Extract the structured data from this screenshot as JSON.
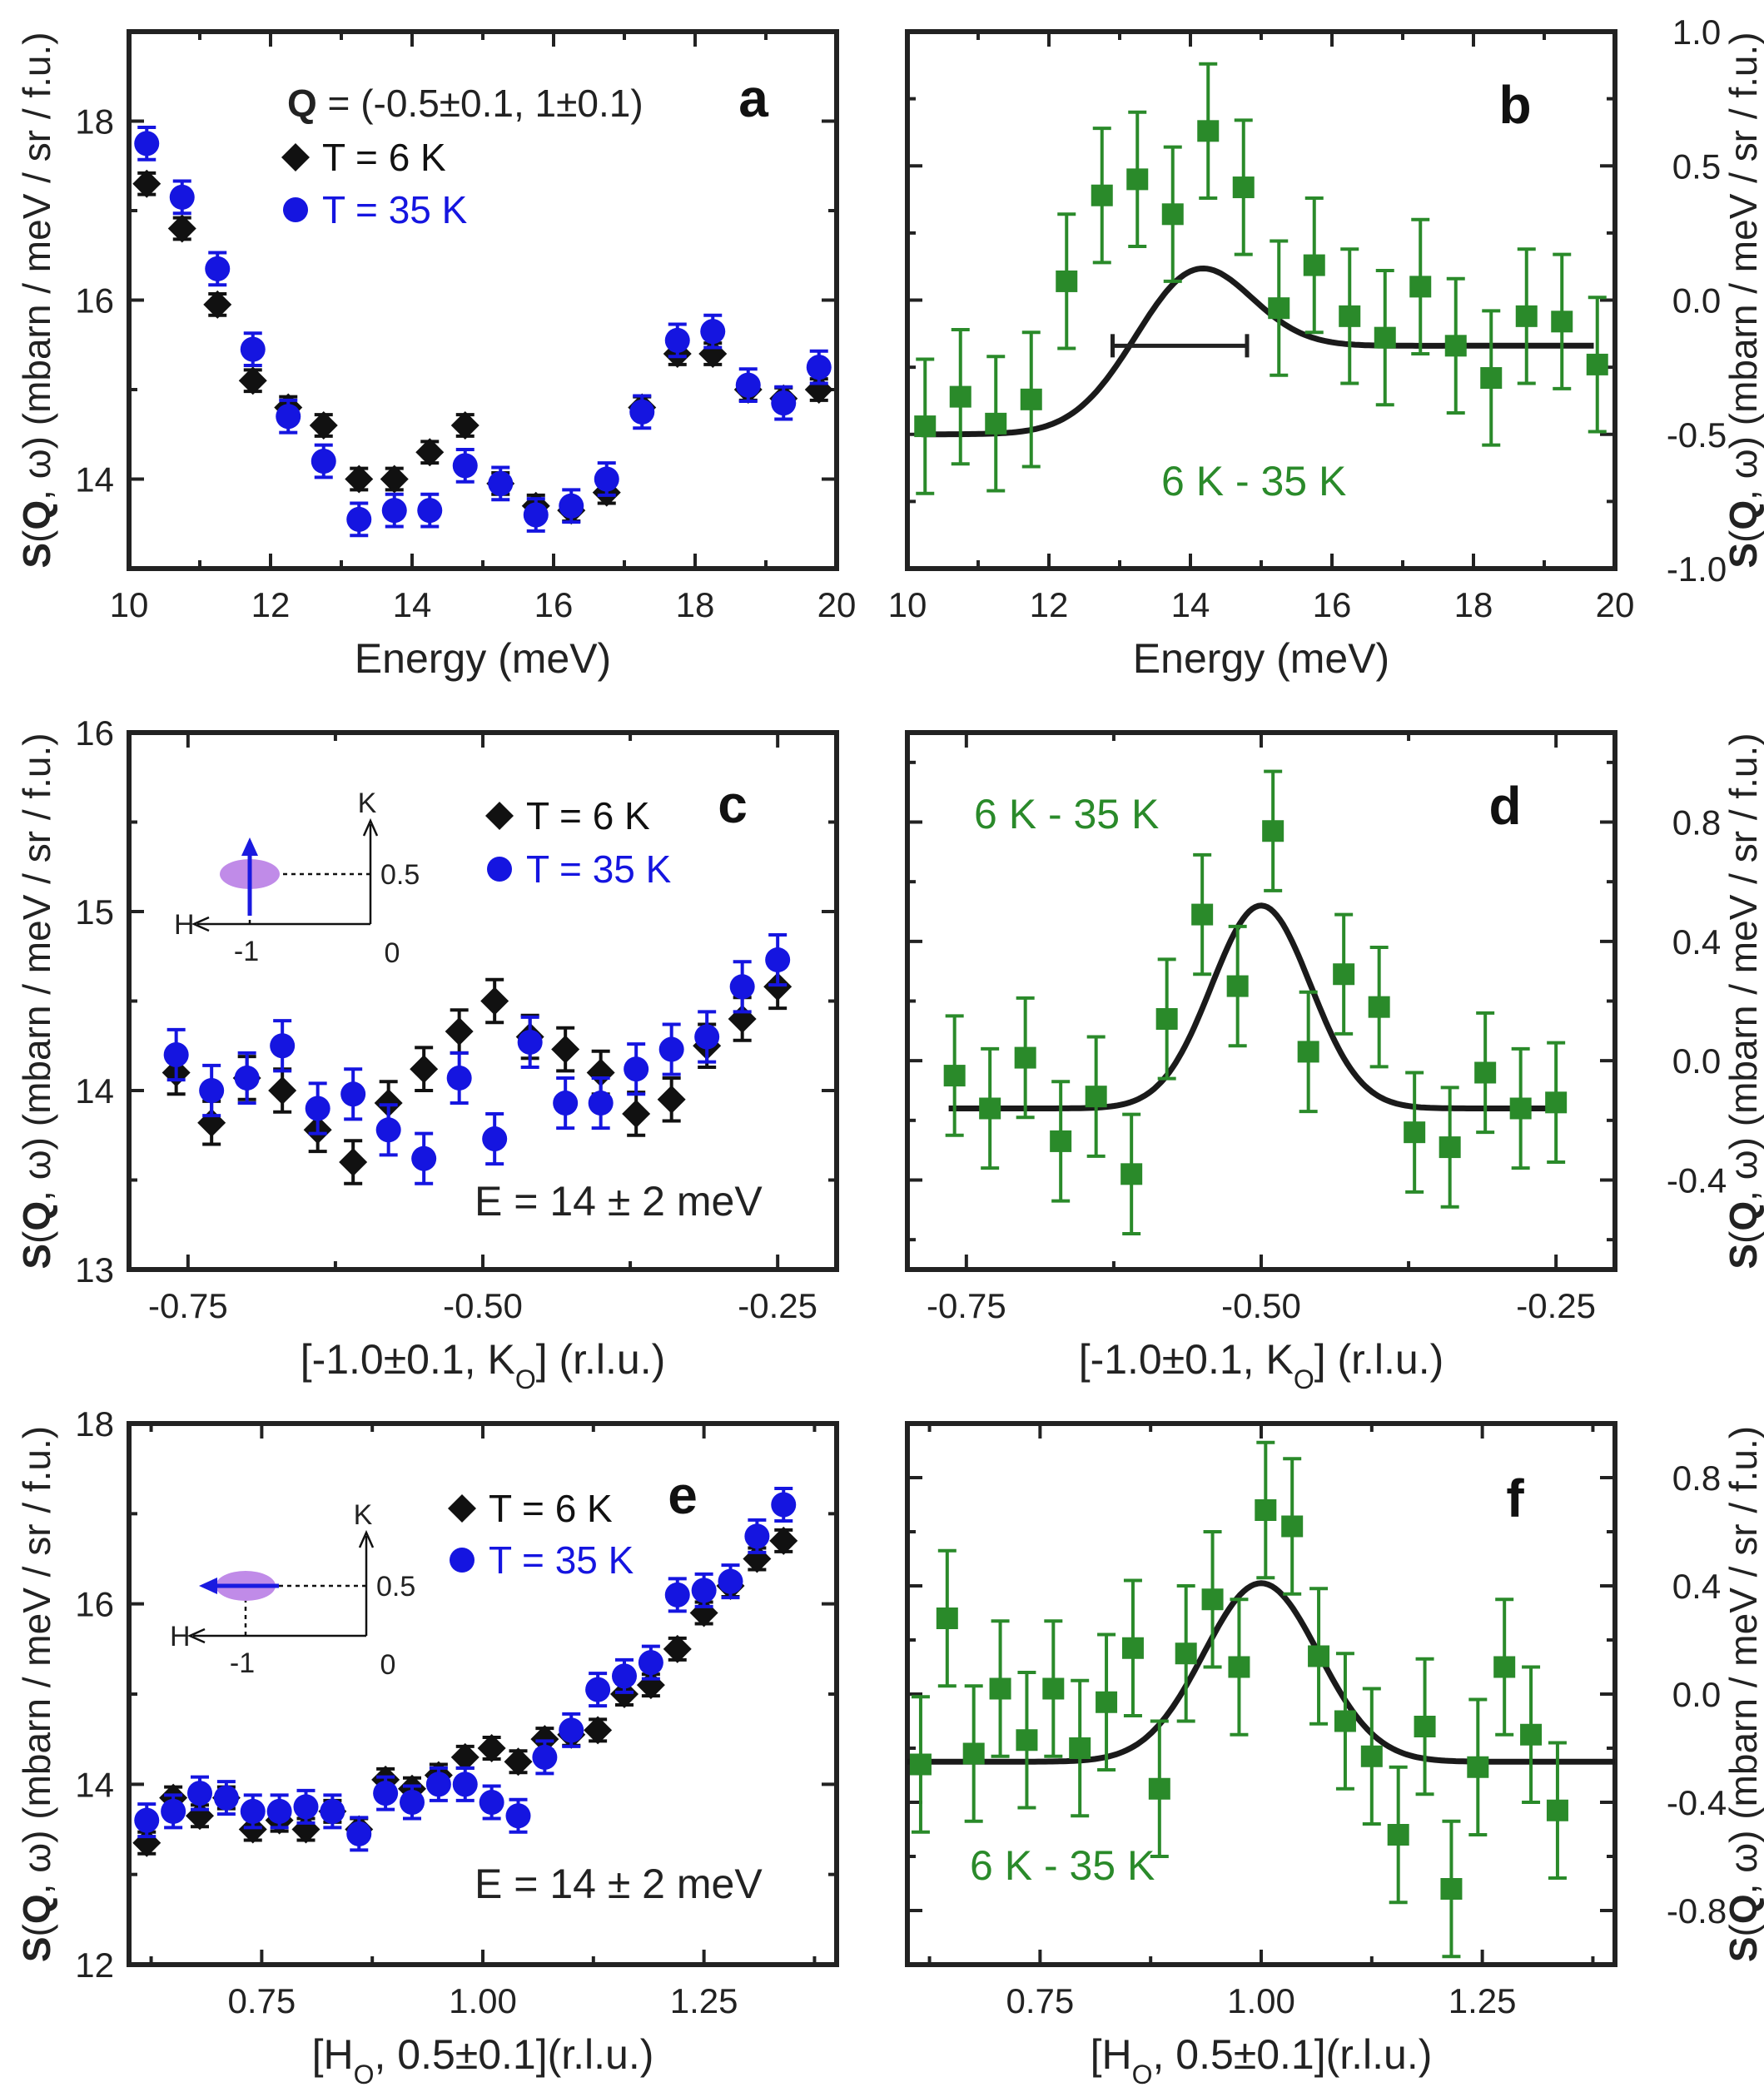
{
  "colors": {
    "t6": "#111111",
    "t35": "#1515e0",
    "diff": "#2a8a2a",
    "fit": "#1a1a1a",
    "ellipse": "#c08be8",
    "arrow": "#1a1ae0"
  },
  "chart_data": [
    {
      "id": "a",
      "type": "scatter",
      "panel_label": "a",
      "xlabel": "Energy (meV)",
      "ylabel": "S(Q, ω) (mbarn / meV / sr / f.u.)",
      "xlim": [
        10,
        20
      ],
      "ylim": [
        13,
        19
      ],
      "xticks": [
        10,
        12,
        14,
        16,
        18,
        20
      ],
      "yticks": [
        14,
        16,
        18
      ],
      "xtick_labels": [
        "10",
        "12",
        "14",
        "16",
        "18",
        "20"
      ],
      "ytick_labels": [
        "14",
        "16",
        "18"
      ],
      "y_axis_side": "left",
      "q_label": "= (-0.5±0.1, 1±0.1)",
      "q_symbol": "Q",
      "legend": [
        {
          "label": "T = 6 K",
          "marker": "diamond",
          "color_key": "t6"
        },
        {
          "label": "T = 35 K",
          "marker": "circle",
          "color_key": "t35"
        }
      ],
      "series": [
        {
          "name": "T = 6 K",
          "marker": "diamond",
          "color_key": "t6",
          "x": [
            10.25,
            10.75,
            11.25,
            11.75,
            12.25,
            12.75,
            13.25,
            13.75,
            14.25,
            14.75,
            15.25,
            15.75,
            16.25,
            16.75,
            17.25,
            17.75,
            18.25,
            18.75,
            19.25,
            19.75
          ],
          "y": [
            17.3,
            16.8,
            15.95,
            15.1,
            14.8,
            14.6,
            14.0,
            14.0,
            14.3,
            14.6,
            13.95,
            13.7,
            13.65,
            13.85,
            14.8,
            15.4,
            15.4,
            15.0,
            14.9,
            15.0
          ],
          "err": [
            0.12,
            0.12,
            0.12,
            0.12,
            0.12,
            0.12,
            0.12,
            0.12,
            0.12,
            0.12,
            0.12,
            0.12,
            0.12,
            0.12,
            0.12,
            0.12,
            0.12,
            0.12,
            0.12,
            0.12
          ]
        },
        {
          "name": "T = 35 K",
          "marker": "circle",
          "color_key": "t35",
          "x": [
            10.25,
            10.75,
            11.25,
            11.75,
            12.25,
            12.75,
            13.25,
            13.75,
            14.25,
            14.75,
            15.25,
            15.75,
            16.25,
            16.75,
            17.25,
            17.75,
            18.25,
            18.75,
            19.25,
            19.75
          ],
          "y": [
            17.75,
            17.15,
            16.35,
            15.45,
            14.7,
            14.2,
            13.55,
            13.65,
            13.65,
            14.15,
            13.95,
            13.6,
            13.7,
            14.0,
            14.75,
            15.55,
            15.65,
            15.05,
            14.85,
            15.25
          ],
          "err": [
            0.18,
            0.18,
            0.18,
            0.18,
            0.18,
            0.18,
            0.18,
            0.18,
            0.18,
            0.18,
            0.18,
            0.18,
            0.18,
            0.18,
            0.18,
            0.18,
            0.18,
            0.18,
            0.18,
            0.18
          ]
        }
      ]
    },
    {
      "id": "b",
      "type": "scatter",
      "panel_label": "b",
      "xlabel": "Energy (meV)",
      "ylabel": "S(Q, ω) (mbarn / meV / sr / f.u.)",
      "xlim": [
        10,
        20
      ],
      "ylim": [
        -1.0,
        1.0
      ],
      "xticks": [
        10,
        12,
        14,
        16,
        18,
        20
      ],
      "yticks": [
        -1.0,
        -0.5,
        0.0,
        0.5,
        1.0
      ],
      "xtick_labels": [
        "10",
        "12",
        "14",
        "16",
        "18",
        "20"
      ],
      "ytick_labels": [
        "-1.0",
        "-0.5",
        "0.0",
        "0.5",
        "1.0"
      ],
      "y_axis_side": "right",
      "annotation": "6 K - 35 K",
      "resolution_bar": {
        "x0": 12.9,
        "x1": 14.8,
        "y": -0.17
      },
      "fit": {
        "type": "gaussian",
        "baseline": -0.17,
        "baseline_slope_to": -0.5,
        "amplitude": 0.64,
        "center": 13.9,
        "sigma": 0.82,
        "x_from": 10.2,
        "x_to": 19.7
      },
      "series": [
        {
          "name": "6 K - 35 K",
          "marker": "square",
          "color_key": "diff",
          "x": [
            10.25,
            10.75,
            11.25,
            11.75,
            12.25,
            12.75,
            13.25,
            13.75,
            14.25,
            14.75,
            15.25,
            15.75,
            16.25,
            16.75,
            17.25,
            17.75,
            18.25,
            18.75,
            19.25,
            19.75
          ],
          "y": [
            -0.47,
            -0.36,
            -0.46,
            -0.37,
            0.07,
            0.39,
            0.45,
            0.32,
            0.63,
            0.42,
            -0.03,
            0.13,
            -0.06,
            -0.14,
            0.05,
            -0.17,
            -0.29,
            -0.06,
            -0.08,
            -0.24
          ],
          "err": [
            0.25,
            0.25,
            0.25,
            0.25,
            0.25,
            0.25,
            0.25,
            0.25,
            0.25,
            0.25,
            0.25,
            0.25,
            0.25,
            0.25,
            0.25,
            0.25,
            0.25,
            0.25,
            0.25,
            0.25
          ]
        }
      ]
    },
    {
      "id": "c",
      "type": "scatter",
      "panel_label": "c",
      "xlabel": "[-1.0±0.1, K",
      "xlabel_sub": "O",
      "xlabel_suffix": "] (r.l.u.)",
      "ylabel": "S(Q, ω) (mbarn / meV / sr / f.u.)",
      "xlim": [
        -0.8,
        -0.2
      ],
      "ylim": [
        13,
        16
      ],
      "xticks": [
        -0.75,
        -0.5,
        -0.25
      ],
      "yticks": [
        13,
        14,
        15,
        16
      ],
      "xtick_labels": [
        "-0.75",
        "-0.50",
        "-0.25"
      ],
      "ytick_labels": [
        "13",
        "14",
        "15",
        "16"
      ],
      "y_axis_side": "left",
      "annotation": "E = 14 ± 2 meV",
      "inset": {
        "k_label": "K",
        "h_label": "H",
        "half_label": "0.5",
        "minus_one_label": "-1",
        "zero_label": "0",
        "orientation": "vertical"
      },
      "legend": [
        {
          "label": "T = 6 K",
          "marker": "diamond",
          "color_key": "t6"
        },
        {
          "label": "T = 35 K",
          "marker": "circle",
          "color_key": "t35"
        }
      ],
      "series": [
        {
          "name": "T = 6 K",
          "marker": "diamond",
          "color_key": "t6",
          "x": [
            -0.76,
            -0.73,
            -0.7,
            -0.67,
            -0.64,
            -0.61,
            -0.58,
            -0.55,
            -0.52,
            -0.49,
            -0.46,
            -0.43,
            -0.4,
            -0.37,
            -0.34,
            -0.31,
            -0.28,
            -0.25
          ],
          "y": [
            14.1,
            13.82,
            14.07,
            14.0,
            13.78,
            13.6,
            13.93,
            14.12,
            14.33,
            14.5,
            14.3,
            14.23,
            14.1,
            13.87,
            13.95,
            14.25,
            14.4,
            14.58
          ],
          "err": [
            0.12,
            0.12,
            0.12,
            0.12,
            0.12,
            0.12,
            0.12,
            0.12,
            0.12,
            0.12,
            0.12,
            0.12,
            0.12,
            0.12,
            0.12,
            0.12,
            0.12,
            0.12
          ]
        },
        {
          "name": "T = 35 K",
          "marker": "circle",
          "color_key": "t35",
          "x": [
            -0.76,
            -0.73,
            -0.7,
            -0.67,
            -0.64,
            -0.61,
            -0.58,
            -0.55,
            -0.52,
            -0.49,
            -0.46,
            -0.43,
            -0.4,
            -0.37,
            -0.34,
            -0.31,
            -0.28,
            -0.25
          ],
          "y": [
            14.2,
            14.0,
            14.07,
            14.25,
            13.9,
            13.98,
            13.78,
            13.62,
            14.07,
            13.73,
            14.27,
            13.93,
            13.93,
            14.12,
            14.23,
            14.3,
            14.58,
            14.73
          ],
          "err": [
            0.14,
            0.14,
            0.14,
            0.14,
            0.14,
            0.14,
            0.14,
            0.14,
            0.14,
            0.14,
            0.14,
            0.14,
            0.14,
            0.14,
            0.14,
            0.14,
            0.14,
            0.14
          ]
        }
      ]
    },
    {
      "id": "d",
      "type": "scatter",
      "panel_label": "d",
      "xlabel": "[-1.0±0.1, K",
      "xlabel_sub": "O",
      "xlabel_suffix": "] (r.l.u.)",
      "ylabel": "S(Q, ω) (mbarn / meV / sr / f.u.)",
      "xlim": [
        -0.8,
        -0.2
      ],
      "ylim": [
        -0.7,
        1.1
      ],
      "xticks": [
        -0.75,
        -0.5,
        -0.25
      ],
      "yticks": [
        -0.4,
        0.0,
        0.4,
        0.8
      ],
      "xtick_labels": [
        "-0.75",
        "-0.50",
        "-0.25"
      ],
      "ytick_labels": [
        "-0.4",
        "0.0",
        "0.4",
        "0.8"
      ],
      "y_axis_side": "right",
      "annotation": "6 K - 35 K",
      "fit": {
        "type": "gaussian",
        "baseline": -0.16,
        "amplitude": 0.68,
        "center": -0.5,
        "sigma": 0.042,
        "x_from": -0.765,
        "x_to": -0.245
      },
      "series": [
        {
          "name": "6 K - 35 K",
          "marker": "square",
          "color_key": "diff",
          "x": [
            -0.76,
            -0.73,
            -0.7,
            -0.67,
            -0.64,
            -0.61,
            -0.58,
            -0.55,
            -0.52,
            -0.49,
            -0.46,
            -0.43,
            -0.4,
            -0.37,
            -0.34,
            -0.31,
            -0.28,
            -0.25
          ],
          "y": [
            -0.05,
            -0.16,
            0.01,
            -0.27,
            -0.12,
            -0.38,
            0.14,
            0.49,
            0.25,
            0.77,
            0.03,
            0.29,
            0.18,
            -0.24,
            -0.29,
            -0.04,
            -0.16,
            -0.14
          ],
          "err": [
            0.2,
            0.2,
            0.2,
            0.2,
            0.2,
            0.2,
            0.2,
            0.2,
            0.2,
            0.2,
            0.2,
            0.2,
            0.2,
            0.2,
            0.2,
            0.2,
            0.2,
            0.2
          ]
        }
      ]
    },
    {
      "id": "e",
      "type": "scatter",
      "panel_label": "e",
      "xlabel": "[H",
      "xlabel_sub": "O",
      "xlabel_suffix": ", 0.5±0.1](r.l.u.)",
      "ylabel": "S(Q, ω) (mbarn / meV / sr / f.u.)",
      "xlim": [
        0.6,
        1.4
      ],
      "ylim": [
        12,
        18
      ],
      "xticks": [
        0.75,
        1.0,
        1.25
      ],
      "yticks": [
        12,
        14,
        16,
        18
      ],
      "xtick_labels": [
        "0.75",
        "1.00",
        "1.25"
      ],
      "ytick_labels": [
        "12",
        "14",
        "16",
        "18"
      ],
      "y_axis_side": "left",
      "annotation": "E = 14 ± 2 meV",
      "inset": {
        "k_label": "K",
        "h_label": "H",
        "half_label": "0.5",
        "minus_one_label": "-1",
        "zero_label": "0",
        "orientation": "horizontal"
      },
      "legend": [
        {
          "label": "T = 6 K",
          "marker": "diamond",
          "color_key": "t6"
        },
        {
          "label": "T = 35 K",
          "marker": "circle",
          "color_key": "t35"
        }
      ],
      "series": [
        {
          "name": "T = 6 K",
          "marker": "diamond",
          "color_key": "t6",
          "x": [
            0.62,
            0.65,
            0.68,
            0.71,
            0.74,
            0.77,
            0.8,
            0.83,
            0.86,
            0.89,
            0.92,
            0.95,
            0.98,
            1.01,
            1.04,
            1.07,
            1.1,
            1.13,
            1.16,
            1.19,
            1.22,
            1.25,
            1.28,
            1.31,
            1.34
          ],
          "y": [
            13.35,
            13.85,
            13.65,
            13.85,
            13.5,
            13.6,
            13.5,
            13.7,
            13.5,
            14.05,
            13.95,
            14.1,
            14.3,
            14.4,
            14.25,
            14.5,
            14.55,
            14.6,
            15.0,
            15.1,
            15.5,
            15.9,
            16.2,
            16.5,
            16.7
          ],
          "err": [
            0.12,
            0.12,
            0.12,
            0.12,
            0.12,
            0.12,
            0.12,
            0.12,
            0.12,
            0.12,
            0.12,
            0.12,
            0.12,
            0.12,
            0.12,
            0.12,
            0.12,
            0.12,
            0.12,
            0.12,
            0.12,
            0.12,
            0.12,
            0.12,
            0.12
          ]
        },
        {
          "name": "T = 35 K",
          "marker": "circle",
          "color_key": "t35",
          "x": [
            0.62,
            0.65,
            0.68,
            0.71,
            0.74,
            0.77,
            0.8,
            0.83,
            0.86,
            0.89,
            0.92,
            0.95,
            0.98,
            1.01,
            1.04,
            1.07,
            1.1,
            1.13,
            1.16,
            1.19,
            1.22,
            1.25,
            1.28,
            1.31,
            1.34
          ],
          "y": [
            13.6,
            13.7,
            13.9,
            13.85,
            13.7,
            13.7,
            13.75,
            13.7,
            13.45,
            13.9,
            13.8,
            14.0,
            14.0,
            13.8,
            13.65,
            14.3,
            14.6,
            15.05,
            15.2,
            15.35,
            16.1,
            16.15,
            16.25,
            16.75,
            17.1
          ],
          "err": [
            0.18,
            0.18,
            0.18,
            0.18,
            0.18,
            0.18,
            0.18,
            0.18,
            0.18,
            0.18,
            0.18,
            0.18,
            0.18,
            0.18,
            0.18,
            0.18,
            0.18,
            0.18,
            0.18,
            0.18,
            0.18,
            0.18,
            0.18,
            0.18,
            0.18
          ]
        }
      ]
    },
    {
      "id": "f",
      "type": "scatter",
      "panel_label": "f",
      "xlabel": "[H",
      "xlabel_sub": "O",
      "xlabel_suffix": ", 0.5±0.1](r.l.u.)",
      "ylabel": "S(Q, ω) (mbarn / meV / sr / f.u.)",
      "xlim": [
        0.6,
        1.4
      ],
      "ylim": [
        -1.0,
        1.0
      ],
      "xticks": [
        0.75,
        1.0,
        1.25
      ],
      "yticks": [
        -0.8,
        -0.4,
        0.0,
        0.4,
        0.8
      ],
      "xtick_labels": [
        "0.75",
        "1.00",
        "1.25"
      ],
      "ytick_labels": [
        "-0.8",
        "-0.4",
        "0.0",
        "0.4",
        "0.8"
      ],
      "y_axis_side": "right",
      "annotation": "6 K - 35 K",
      "fit": {
        "type": "gaussian",
        "baseline": -0.25,
        "amplitude": 0.66,
        "center": 1.0,
        "sigma": 0.065,
        "x_from": 0.6,
        "x_to": 1.4
      },
      "series": [
        {
          "name": "6 K - 35 K",
          "marker": "square",
          "color_key": "diff",
          "x": [
            0.615,
            0.645,
            0.675,
            0.705,
            0.735,
            0.765,
            0.795,
            0.825,
            0.855,
            0.885,
            0.915,
            0.945,
            0.975,
            1.005,
            1.035,
            1.065,
            1.095,
            1.125,
            1.155,
            1.185,
            1.215,
            1.245,
            1.275,
            1.305,
            1.335
          ],
          "y": [
            -0.26,
            0.28,
            -0.22,
            0.02,
            -0.17,
            0.02,
            -0.2,
            -0.03,
            0.17,
            -0.35,
            0.15,
            0.35,
            0.1,
            0.68,
            0.62,
            0.14,
            -0.1,
            -0.23,
            -0.52,
            -0.12,
            -0.72,
            -0.27,
            0.1,
            -0.15,
            -0.43
          ],
          "err": [
            0.25,
            0.25,
            0.25,
            0.25,
            0.25,
            0.25,
            0.25,
            0.25,
            0.25,
            0.25,
            0.25,
            0.25,
            0.25,
            0.25,
            0.25,
            0.25,
            0.25,
            0.25,
            0.25,
            0.25,
            0.25,
            0.25,
            0.25,
            0.25,
            0.25
          ]
        }
      ]
    }
  ]
}
